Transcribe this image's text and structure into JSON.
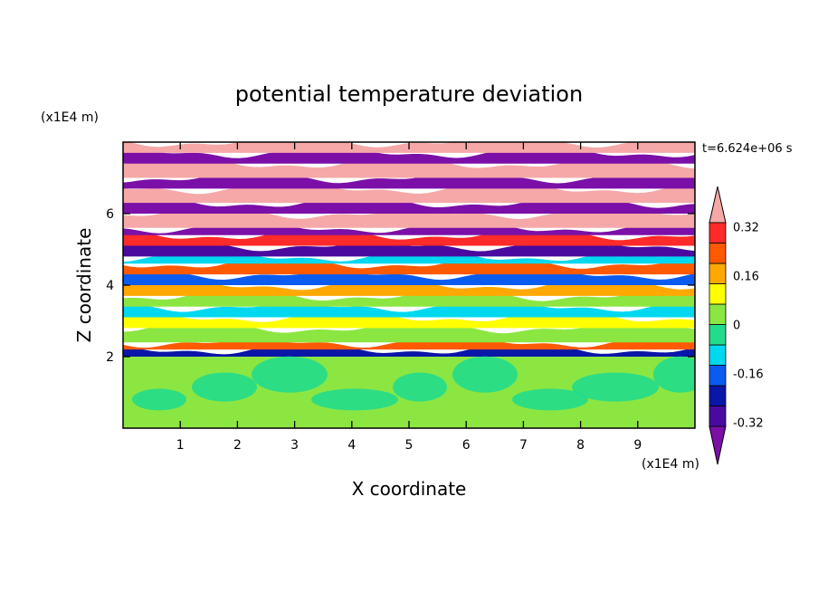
{
  "chart_data": {
    "type": "heatmap",
    "title": "potential temperature deviation",
    "xlabel": "X coordinate",
    "ylabel": "Z coordinate",
    "x_unit": "(x1E4 m)",
    "y_unit": "(x1E4 m)",
    "time_label": "t=6.624e+06 s",
    "xlim": [
      0,
      10
    ],
    "ylim": [
      0,
      8
    ],
    "x_ticks": [
      1,
      2,
      3,
      4,
      5,
      6,
      7,
      8,
      9
    ],
    "y_ticks": [
      2,
      4,
      6
    ],
    "colorbar": {
      "colors": [
        "#7b0fa8",
        "#4a0aa0",
        "#0a16a8",
        "#0a5cf0",
        "#00d8f0",
        "#22dc8c",
        "#8ce642",
        "#ffff00",
        "#ffa800",
        "#ff5a00",
        "#ff2a2a",
        "#f6a8a8"
      ],
      "labels": [
        "-0.32",
        "-0.16",
        "0",
        "0.16",
        "0.32"
      ],
      "label_values": [
        -0.32,
        -0.16,
        0,
        0.16,
        0.32
      ],
      "vmin": -0.4,
      "vmax": 0.4,
      "extend": "both"
    },
    "bands": [
      {
        "z0": 0.0,
        "z1": 2.0,
        "level": 0.04
      },
      {
        "z0": 2.0,
        "z1": 2.2,
        "level": -0.25
      },
      {
        "z0": 2.2,
        "z1": 2.4,
        "level": 0.2
      },
      {
        "z0": 2.4,
        "z1": 2.8,
        "level": 0.0
      },
      {
        "z0": 2.8,
        "z1": 3.1,
        "level": 0.1
      },
      {
        "z0": 3.1,
        "z1": 3.4,
        "level": -0.08
      },
      {
        "z0": 3.4,
        "z1": 3.7,
        "level": 0.02
      },
      {
        "z0": 3.7,
        "z1": 4.0,
        "level": 0.15
      },
      {
        "z0": 4.0,
        "z1": 4.3,
        "level": -0.2
      },
      {
        "z0": 4.3,
        "z1": 4.6,
        "level": 0.25
      },
      {
        "z0": 4.6,
        "z1": 4.8,
        "level": -0.1
      },
      {
        "z0": 4.8,
        "z1": 5.1,
        "level": -0.3
      },
      {
        "z0": 5.1,
        "z1": 5.4,
        "level": 0.3
      },
      {
        "z0": 5.4,
        "z1": 5.6,
        "level": -0.38
      },
      {
        "z0": 5.6,
        "z1": 6.0,
        "level": 0.38
      },
      {
        "z0": 6.0,
        "z1": 6.3,
        "level": -0.38
      },
      {
        "z0": 6.3,
        "z1": 6.7,
        "level": 0.38
      },
      {
        "z0": 6.7,
        "z1": 7.0,
        "level": -0.38
      },
      {
        "z0": 7.0,
        "z1": 7.4,
        "level": 0.38
      },
      {
        "z0": 7.4,
        "z1": 7.7,
        "level": -0.38
      },
      {
        "z0": 7.7,
        "z1": 8.0,
        "level": 0.38
      }
    ],
    "grid": false,
    "legend": "right"
  }
}
